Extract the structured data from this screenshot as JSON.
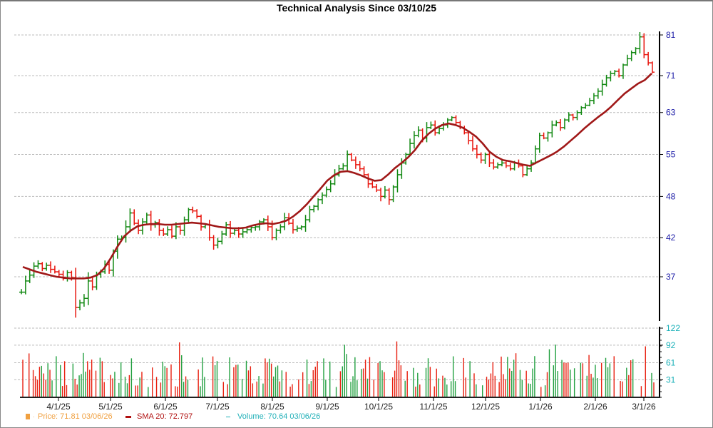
{
  "chart_data": {
    "type": "ohlc",
    "title": "Technical Analysis Since 03/10/25",
    "xlabel": "",
    "ylabel": "",
    "price_axis": {
      "ticks": [
        37,
        42,
        48,
        55,
        63,
        71,
        81
      ],
      "tick_color": "#1a1aa6",
      "range": [
        31,
        82
      ]
    },
    "volume_axis": {
      "ticks": [
        31,
        61,
        92,
        122
      ],
      "tick_color": "#1ab0b8",
      "range": [
        0,
        128
      ]
    },
    "x_ticks": [
      "4/1/25",
      "5/1/25",
      "6/1/25",
      "7/1/25",
      "8/1/25",
      "9/1/25",
      "10/1/25",
      "11/1/25",
      "12/1/25",
      "1/1/26",
      "2/1/26",
      "3/1/26"
    ],
    "grid": true,
    "series": [
      {
        "name": "Price",
        "type": "ohlc",
        "up_color": "#118811",
        "down_color": "#e8140c"
      },
      {
        "name": "SMA 20",
        "type": "line",
        "color": "#a01818"
      },
      {
        "name": "Volume",
        "type": "bar",
        "up_color": "#22a040",
        "down_color": "#e82010"
      }
    ],
    "price_path": [
      35.2,
      36.5,
      37.2,
      38.3,
      38.6,
      38.0,
      38.4,
      37.9,
      37.6,
      37.3,
      36.8,
      37.5,
      36.9,
      33.5,
      34.0,
      34.5,
      36.5,
      35.8,
      37.3,
      37.6,
      38.5,
      37.8,
      40.2,
      41.8,
      42.0,
      43.5,
      45.5,
      44.0,
      43.0,
      44.2,
      45.2,
      43.8,
      44.1,
      43.0,
      42.5,
      43.1,
      42.2,
      43.5,
      43.0,
      44.5,
      46.0,
      45.8,
      45.0,
      43.5,
      43.8,
      42.0,
      41.0,
      41.5,
      42.5,
      43.8,
      42.6,
      43.0,
      42.5,
      42.8,
      43.1,
      43.4,
      43.5,
      44.2,
      44.5,
      43.5,
      42.0,
      43.0,
      43.5,
      44.8,
      44.0,
      43.1,
      43.3,
      43.5,
      44.5,
      46.0,
      46.5,
      47.5,
      48.2,
      49.1,
      50.0,
      51.5,
      52.5,
      53.0,
      55.0,
      54.0,
      53.2,
      52.5,
      51.5,
      50.0,
      49.5,
      49.0,
      48.0,
      49.0,
      47.5,
      49.5,
      51.5,
      53.5,
      55.0,
      57.0,
      58.5,
      59.5,
      58.0,
      60.0,
      60.5,
      59.0,
      59.8,
      60.5,
      61.5,
      62.0,
      61.0,
      60.0,
      59.0,
      57.5,
      56.0,
      55.0,
      54.0,
      55.0,
      53.5,
      52.8,
      53.2,
      53.5,
      53.0,
      52.5,
      53.5,
      53.0,
      51.5,
      52.5,
      53.5,
      56.0,
      58.5,
      58.0,
      59.0,
      60.5,
      61.0,
      60.0,
      61.5,
      62.5,
      62.0,
      63.0,
      64.0,
      64.5,
      65.5,
      66.5,
      67.5,
      69.0,
      70.5,
      71.5,
      72.0,
      71.0,
      73.5,
      75.0,
      76.5,
      77.5,
      80.5,
      76.0,
      74.0,
      71.8
    ],
    "sma20_path": [
      38.2,
      37.9,
      37.6,
      37.4,
      37.2,
      37.0,
      36.9,
      36.8,
      36.8,
      36.8,
      36.9,
      37.2,
      38.0,
      39.3,
      40.8,
      42.2,
      43.0,
      43.6,
      43.8,
      43.9,
      43.9,
      43.8,
      43.8,
      43.9,
      44.0,
      44.1,
      44.0,
      43.9,
      43.7,
      43.5,
      43.4,
      43.3,
      43.3,
      43.4,
      43.7,
      43.9,
      44.0,
      43.9,
      44.1,
      44.4,
      45.0,
      45.8,
      46.8,
      48.0,
      49.2,
      50.5,
      51.4,
      52.0,
      52.1,
      51.8,
      51.4,
      50.9,
      50.5,
      50.6,
      51.5,
      52.6,
      53.5,
      54.5,
      55.8,
      57.5,
      58.8,
      59.8,
      60.5,
      60.8,
      60.5,
      60.0,
      59.2,
      58.3,
      57.0,
      55.5,
      54.6,
      54.0,
      53.8,
      53.5,
      53.2,
      53.0,
      53.6,
      54.2,
      54.8,
      55.5,
      56.4,
      57.5,
      58.6,
      59.8,
      60.9,
      62.0,
      63.0,
      64.2,
      65.6,
      67.0,
      68.1,
      69.2,
      70.0,
      71.5
    ]
  },
  "header": {
    "title": "Technical Analysis Since 03/10/25"
  },
  "legend": {
    "price_label": "Price: 71.81  03/06/26",
    "price_color": "#f0a040",
    "sma_label": "SMA 20: 72.797",
    "sma_color": "#b01010",
    "volume_label": "Volume: 70.64  03/06/26",
    "volume_color": "#20b0b8"
  }
}
